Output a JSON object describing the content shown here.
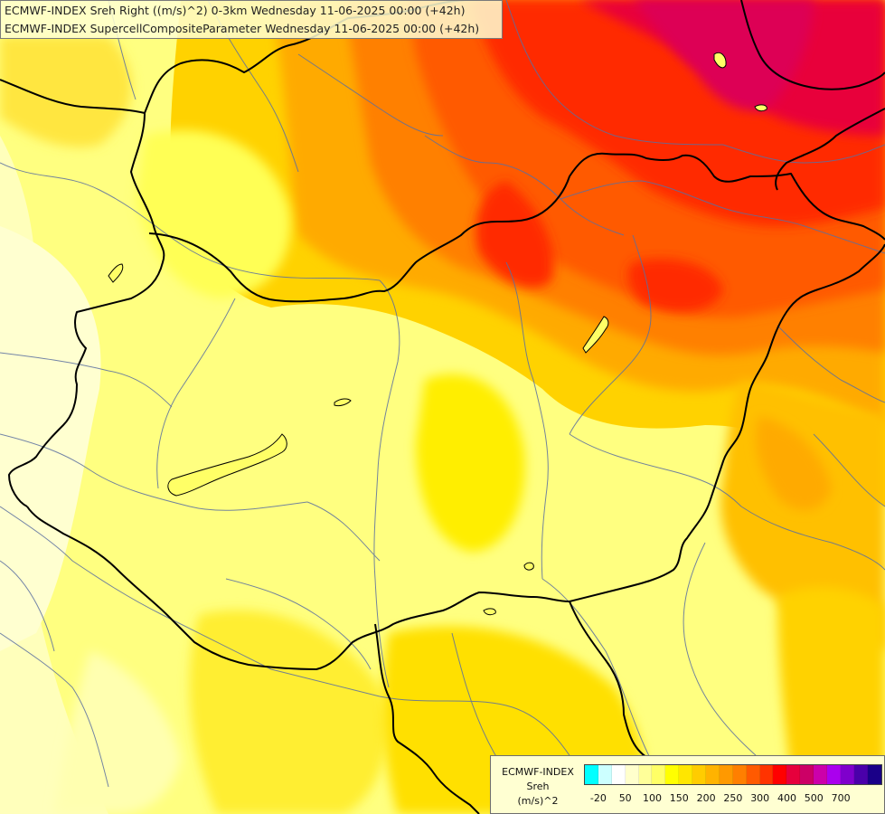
{
  "title": {
    "line1": "ECMWF-INDEX Sreh Right ((m/s)^2) 0-3km Wednesday 11-06-2025 00:00 (+42h)",
    "line2": "ECMWF-INDEX SupercellCompositeParameter Wednesday 11-06-2025 00:00 (+42h)"
  },
  "legend": {
    "label_model": "ECMWF-INDEX",
    "label_param": "Sreh",
    "label_unit": "(m/s)^2",
    "colors": [
      "#00ffff",
      "#ccffff",
      "#ffffff",
      "#ffffcc",
      "#ffff99",
      "#ffff66",
      "#ffff00",
      "#ffe600",
      "#ffcc00",
      "#ffb300",
      "#ff9900",
      "#ff7f00",
      "#ff5a00",
      "#ff3300",
      "#ff0000",
      "#e6003c",
      "#cc0066",
      "#cc00aa",
      "#aa00ee",
      "#7f00cc",
      "#4a00aa",
      "#1a0088"
    ],
    "ticks": [
      "-20",
      "50",
      "100",
      "150",
      "200",
      "250",
      "300",
      "400",
      "500",
      "700"
    ]
  }
}
